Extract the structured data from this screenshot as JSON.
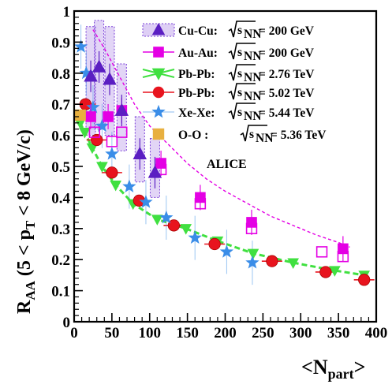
{
  "chart_data": {
    "type": "scatter",
    "xlabel_main": "<N",
    "xlabel_sub": "part",
    "xlabel_close": ">",
    "ylabel_main": "R",
    "ylabel_sub1": "AA",
    "ylabel_mid": " (5 < p",
    "ylabel_sub2": "T",
    "ylabel_end": " < 8 GeV/c)",
    "xlim": [
      0,
      400
    ],
    "ylim": [
      0,
      1
    ],
    "x_ticks": [
      0,
      50,
      100,
      150,
      200,
      250,
      300,
      350,
      400
    ],
    "y_ticks": [
      0,
      0.1,
      0.2,
      0.3,
      0.4,
      0.5,
      0.6,
      0.7,
      0.8,
      0.9,
      1
    ],
    "x_tick_labels": [
      "0",
      "50",
      "100",
      "150",
      "200",
      "250",
      "300",
      "350",
      "400"
    ],
    "y_tick_labels": [
      "0",
      "0.1",
      "0.2",
      "0.3",
      "0.4",
      "0.5",
      "0.6",
      "0.7",
      "0.8",
      "0.9",
      "1"
    ],
    "annotation": "ALICE",
    "legend_position": "top-right",
    "series": [
      {
        "name": "Cu-Cu:",
        "energy": "= 200 GeV",
        "marker": "triangle",
        "color": "#5b1fc2",
        "open_color": "#7a3fd8",
        "points": [
          [
            22,
            0.79
          ],
          [
            33,
            0.82
          ],
          [
            47,
            0.78
          ],
          [
            63,
            0.68
          ],
          [
            87,
            0.54
          ],
          [
            107,
            0.48
          ]
        ],
        "sys_band": [
          [
            22,
            0.6,
            0.95
          ],
          [
            33,
            0.62,
            0.97
          ],
          [
            47,
            0.6,
            0.95
          ],
          [
            63,
            0.55,
            0.83
          ],
          [
            87,
            0.45,
            0.66
          ],
          [
            107,
            0.4,
            0.59
          ]
        ]
      },
      {
        "name": "Au-Au:",
        "energy": "= 200 GeV",
        "marker": "square",
        "color": "#e400e4",
        "points": [
          [
            22,
            0.66
          ],
          [
            45,
            0.66
          ],
          [
            63,
            0.68
          ],
          [
            115,
            0.51
          ],
          [
            167,
            0.4
          ],
          [
            235,
            0.32
          ],
          [
            356,
            0.235
          ]
        ],
        "open_points": [
          [
            27,
            0.61
          ],
          [
            50,
            0.58
          ],
          [
            63,
            0.61
          ],
          [
            115,
            0.49
          ],
          [
            167,
            0.38
          ],
          [
            235,
            0.3
          ],
          [
            328,
            0.225
          ],
          [
            356,
            0.21
          ]
        ],
        "sys_curve": [
          [
            25,
            0.94
          ],
          [
            40,
            0.88
          ],
          [
            60,
            0.79
          ],
          [
            80,
            0.7
          ],
          [
            100,
            0.63
          ],
          [
            125,
            0.57
          ],
          [
            150,
            0.51
          ],
          [
            175,
            0.46
          ],
          [
            200,
            0.42
          ],
          [
            230,
            0.38
          ],
          [
            260,
            0.34
          ],
          [
            290,
            0.31
          ],
          [
            320,
            0.28
          ],
          [
            350,
            0.255
          ],
          [
            365,
            0.24
          ]
        ]
      },
      {
        "name": "Pb-Pb:",
        "energy": "= 2.76 TeV",
        "marker": "inverted-triangle",
        "color": "#40e040",
        "points": [
          [
            8,
            0.64
          ],
          [
            14,
            0.61
          ],
          [
            24,
            0.56
          ],
          [
            37,
            0.5
          ],
          [
            55,
            0.44
          ],
          [
            78,
            0.38
          ],
          [
            110,
            0.33
          ],
          [
            148,
            0.3
          ],
          [
            190,
            0.26
          ],
          [
            237,
            0.22
          ],
          [
            290,
            0.19
          ],
          [
            345,
            0.165
          ],
          [
            384,
            0.15
          ]
        ]
      },
      {
        "name": "Pb-Pb:",
        "energy": "= 5.02 TeV",
        "marker": "circle",
        "color": "#e8141e",
        "points": [
          [
            15,
            0.7
          ],
          [
            30,
            0.585
          ],
          [
            50,
            0.48
          ],
          [
            86,
            0.39
          ],
          [
            132,
            0.31
          ],
          [
            186,
            0.25
          ],
          [
            262,
            0.195
          ],
          [
            333,
            0.16
          ],
          [
            384,
            0.135
          ]
        ]
      },
      {
        "name": "Xe-Xe:",
        "energy": "= 5.44 TeV",
        "marker": "star",
        "color": "#3a8de8",
        "points": [
          [
            9,
            0.885
          ],
          [
            16,
            0.8
          ],
          [
            25,
            0.69
          ],
          [
            37,
            0.63
          ],
          [
            50,
            0.54
          ],
          [
            73,
            0.435
          ],
          [
            95,
            0.385
          ],
          [
            122,
            0.335
          ],
          [
            160,
            0.27
          ],
          [
            202,
            0.225
          ],
          [
            236,
            0.19
          ]
        ]
      },
      {
        "name": "O-O :",
        "energy": "= 5.36 TeV",
        "marker": "square",
        "color": "#e8b040",
        "points": [
          [
            8,
            0.665
          ]
        ]
      }
    ]
  },
  "legend_sqrt": "s",
  "legend_sqrt_sub": "NN"
}
